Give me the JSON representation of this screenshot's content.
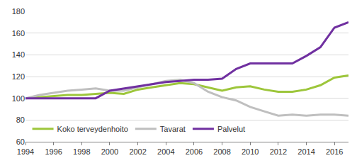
{
  "chart_data": {
    "type": "line",
    "x": [
      1994,
      1995,
      1996,
      1997,
      1998,
      1999,
      2000,
      2001,
      2002,
      2003,
      2004,
      2005,
      2006,
      2007,
      2008,
      2009,
      2010,
      2011,
      2012,
      2013,
      2014,
      2015,
      2016,
      2017
    ],
    "series": [
      {
        "name": "Koko terveydenhoito",
        "color": "#9dc63b",
        "values": [
          100,
          101,
          102,
          103,
          103,
          104,
          105,
          104,
          108,
          110,
          112,
          114,
          113,
          110,
          107,
          110,
          111,
          108,
          106,
          106,
          108,
          112,
          119,
          121
        ]
      },
      {
        "name": "Tavarat",
        "color": "#bfbfbf",
        "values": [
          100,
          103,
          105,
          107,
          108,
          109,
          107,
          107,
          110,
          113,
          116,
          117,
          114,
          106,
          101,
          98,
          92,
          88,
          84,
          85,
          84,
          85,
          85,
          84
        ]
      },
      {
        "name": "Palvelut",
        "color": "#7030a0",
        "values": [
          100,
          100,
          100,
          100,
          100,
          100,
          107,
          109,
          111,
          113,
          115,
          116,
          117,
          117,
          118,
          127,
          132,
          132,
          132,
          132,
          139,
          147,
          165,
          170
        ]
      }
    ],
    "xlim": [
      1994,
      2017
    ],
    "xticks": [
      1994,
      1996,
      1998,
      2000,
      2002,
      2004,
      2006,
      2008,
      2010,
      2012,
      2014,
      2016
    ],
    "ylim": [
      60,
      180
    ],
    "yticks": [
      60,
      80,
      100,
      120,
      140,
      160,
      180
    ],
    "grid": true,
    "legend": "bottom left"
  }
}
